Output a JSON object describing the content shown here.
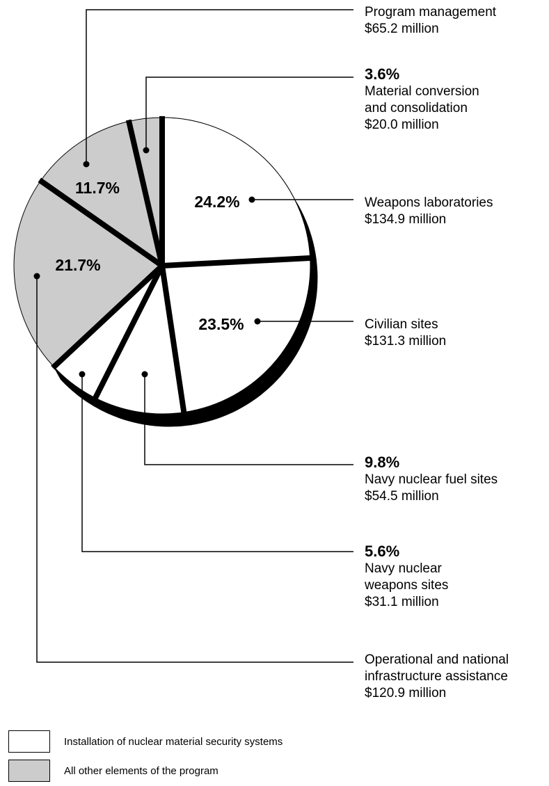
{
  "chart_data": {
    "type": "pie",
    "title": "",
    "slices": [
      {
        "key": "weapons_labs",
        "pct_label": "24.2%",
        "value": 24.2,
        "name": "Weapons laboratories",
        "amount": "$134.9 million",
        "group": "installation"
      },
      {
        "key": "civilian",
        "pct_label": "23.5%",
        "value": 23.5,
        "name": "Civilian sites",
        "amount": "$131.3 million",
        "group": "installation"
      },
      {
        "key": "navy_fuel",
        "pct_label": "9.8%",
        "value": 9.8,
        "name": "Navy nuclear fuel sites",
        "amount": "$54.5 million",
        "group": "installation"
      },
      {
        "key": "navy_weapons",
        "pct_label": "5.6%",
        "value": 5.6,
        "name": "Navy nuclear weapons sites",
        "name_lines": [
          "Navy nuclear",
          "weapons sites"
        ],
        "amount": "$31.1 million",
        "group": "installation"
      },
      {
        "key": "operational",
        "pct_label": "21.7%",
        "value": 21.7,
        "name": "Operational and national infrastructure assistance",
        "name_lines": [
          "Operational and national",
          "infrastructure assistance"
        ],
        "amount": "$120.9 million",
        "group": "other"
      },
      {
        "key": "program_mgmt",
        "pct_label": "11.7%",
        "value": 11.7,
        "name": "Program management",
        "amount": "$65.2 million",
        "group": "other"
      },
      {
        "key": "material_conv",
        "pct_label": "3.6%",
        "value": 3.6,
        "name": "Material conversion and consolidation",
        "name_lines": [
          "Material conversion",
          "and consolidation"
        ],
        "amount": "$20.0 million",
        "group": "other"
      }
    ],
    "legend": [
      {
        "group": "installation",
        "label": "Installation of nuclear material security systems",
        "color": "#ffffff"
      },
      {
        "group": "other",
        "label": "All other elements of the program",
        "color": "#cccccc"
      }
    ],
    "colors": {
      "installation": "#ffffff",
      "other": "#cccccc",
      "edge": "#000000"
    }
  }
}
